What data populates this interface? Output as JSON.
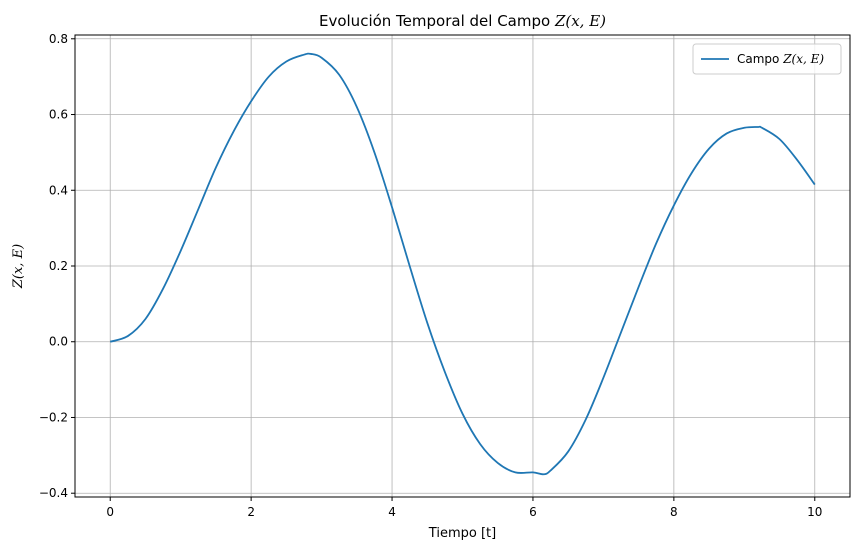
{
  "chart_data": {
    "type": "line",
    "title": {
      "prefix": "Evolución Temporal del Campo ",
      "math": "Z(x, E)"
    },
    "xlabel": "Tiempo [t]",
    "ylabel": "Z(x, E)",
    "xlim": [
      -0.5,
      10.5
    ],
    "ylim": [
      -0.41,
      0.81
    ],
    "xticks": [
      0,
      2,
      4,
      6,
      8,
      10
    ],
    "yticks": [
      -0.4,
      -0.2,
      0.0,
      0.2,
      0.4,
      0.6,
      0.8
    ],
    "xtick_labels": [
      "0",
      "2",
      "4",
      "6",
      "8",
      "10"
    ],
    "ytick_labels": [
      "−0.4",
      "−0.2",
      "0.0",
      "0.2",
      "0.4",
      "0.6",
      "0.8"
    ],
    "grid": true,
    "legend_position": "top-right",
    "series": [
      {
        "name": "Campo Z(x, E)",
        "legend_prefix": "Campo ",
        "legend_math": "Z(x, E)",
        "color": "#1f77b4",
        "x": [
          0,
          0.25,
          0.5,
          0.75,
          1.0,
          1.25,
          1.5,
          1.75,
          2.0,
          2.25,
          2.5,
          2.75,
          2.85,
          3.0,
          3.25,
          3.5,
          3.75,
          4.0,
          4.25,
          4.5,
          4.75,
          5.0,
          5.25,
          5.5,
          5.75,
          6.0,
          6.15,
          6.25,
          6.5,
          6.75,
          7.0,
          7.25,
          7.5,
          7.75,
          8.0,
          8.25,
          8.5,
          8.75,
          9.0,
          9.2,
          9.25,
          9.5,
          9.75,
          10.0
        ],
        "y": [
          0.0,
          0.015,
          0.06,
          0.14,
          0.24,
          0.35,
          0.46,
          0.555,
          0.635,
          0.7,
          0.74,
          0.758,
          0.76,
          0.75,
          0.705,
          0.62,
          0.5,
          0.355,
          0.2,
          0.05,
          -0.08,
          -0.19,
          -0.27,
          -0.32,
          -0.345,
          -0.345,
          -0.35,
          -0.34,
          -0.29,
          -0.205,
          -0.095,
          0.025,
          0.145,
          0.26,
          0.36,
          0.445,
          0.51,
          0.55,
          0.565,
          0.567,
          0.565,
          0.535,
          0.48,
          0.415
        ]
      }
    ]
  }
}
